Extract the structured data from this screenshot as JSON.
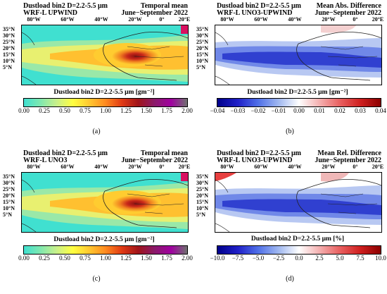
{
  "lon_labels": [
    "80°W",
    "60°W",
    "40°W",
    "20°W",
    "0°",
    "20°E"
  ],
  "lat_labels": [
    "35°N",
    "30°N",
    "25°N",
    "20°N",
    "15°N",
    "10°N",
    "5°N"
  ],
  "panels": [
    {
      "id": "a",
      "title_left_1": "Dustload bin2 D=2.2-5.5 μm",
      "title_left_2": "WRF-L UPWIND",
      "title_right_1": "Temporal mean",
      "title_right_2": "June−September 2022",
      "colorbar_title": "Dustload bin2 D=2.2-5.5 μm [gm⁻²]",
      "ticks": [
        "0.00",
        "0.25",
        "0.50",
        "0.75",
        "1.00",
        "1.25",
        "1.50",
        "1.75",
        "2.00"
      ],
      "label": "(a)"
    },
    {
      "id": "b",
      "title_left_1": "Dustload bin2 D=2.2-5.5 μm",
      "title_left_2": "WRF-L UNO3-UPWIND",
      "title_right_1": "Mean Abs. Difference",
      "title_right_2": "June−September 2022",
      "colorbar_title": "Dustload bin2 D=2.2-5.5 μm [gm⁻²]",
      "ticks": [
        "−0.04",
        "−0.03",
        "−0.02",
        "−0.01",
        "0.00",
        "0.01",
        "0.02",
        "0.03",
        "0.04"
      ],
      "label": "(b)"
    },
    {
      "id": "c",
      "title_left_1": "Dustload bin2 D=2.2-5.5 μm",
      "title_left_2": "WRF-L UNO3",
      "title_right_1": "Temporal mean",
      "title_right_2": "June−September 2022",
      "colorbar_title": "Dustload bin2 D=2.2-5.5 μm [gm⁻²]",
      "ticks": [
        "0.00",
        "0.25",
        "0.50",
        "0.75",
        "1.00",
        "1.25",
        "1.50",
        "1.75",
        "2.00"
      ],
      "label": "(c)"
    },
    {
      "id": "d",
      "title_left_1": "Dustload bin2 D=2.2-5.5 μm",
      "title_left_2": "WRF-L UNO3-UPWIND",
      "title_right_1": "Mean Rel. Difference",
      "title_right_2": "June−September 2022",
      "colorbar_title": "Dustload bin2 D=2.2-5.5 μm [%]",
      "ticks": [
        "−10.0",
        "−7.5",
        "−5.0",
        "−2.5",
        "0.0",
        "2.5",
        "5.0",
        "7.5",
        "10.0"
      ],
      "label": "(d)"
    }
  ],
  "colors": {
    "seq": [
      "#40e0d0",
      "#7fe8b0",
      "#c8f08a",
      "#ffff40",
      "#ffc830",
      "#ff8a20",
      "#e03a14",
      "#a0141a",
      "#8a1a6a",
      "#a000a0",
      "#707070"
    ],
    "div": [
      "#00008b",
      "#2020c8",
      "#5070e8",
      "#a0b8f0",
      "#ffffff",
      "#f4b0b0",
      "#e86060",
      "#d02020",
      "#8b0000"
    ],
    "land_outline": "#222222"
  }
}
